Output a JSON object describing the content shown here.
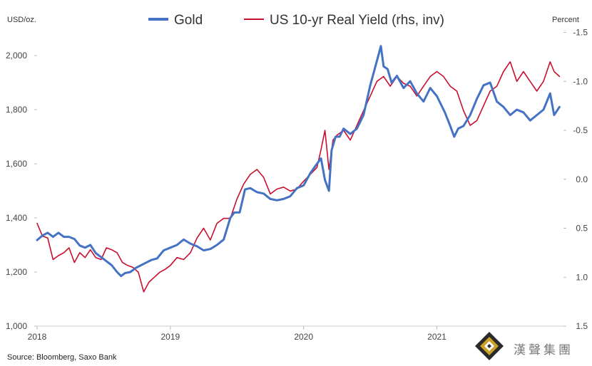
{
  "chart_data": {
    "type": "line",
    "title": "",
    "xlabel": "",
    "ylabel_left": "USD/oz.",
    "ylabel_right": "Percent",
    "x_ticks": [
      "2018",
      "2019",
      "2020",
      "2021"
    ],
    "x_tick_values": [
      2018.0,
      2019.0,
      2020.0,
      2021.0
    ],
    "xlim": [
      2018.0,
      2021.95
    ],
    "y_left_ticks": [
      "1,000",
      "1,200",
      "1,400",
      "1,600",
      "1,800",
      "2,000"
    ],
    "y_left_tick_values": [
      1000,
      1200,
      1400,
      1600,
      1800,
      2000
    ],
    "y_left_lim": [
      1000,
      2100
    ],
    "y_right_ticks": [
      "-1.5",
      "-1.0",
      "-0.5",
      "0.0",
      "0.5",
      "1.0",
      "1.5"
    ],
    "y_right_tick_values": [
      -1.5,
      -1.0,
      -0.5,
      0.0,
      0.5,
      1.0,
      1.5
    ],
    "y_right_lim": [
      -1.54,
      1.5
    ],
    "y_right_inverted": true,
    "legend_position": "top",
    "series": [
      {
        "name": "Gold",
        "axis": "left",
        "color": "#4472C4",
        "x": [
          2018.0,
          2018.04,
          2018.08,
          2018.12,
          2018.16,
          2018.2,
          2018.24,
          2018.28,
          2018.32,
          2018.36,
          2018.4,
          2018.44,
          2018.48,
          2018.52,
          2018.56,
          2018.6,
          2018.63,
          2018.66,
          2018.7,
          2018.74,
          2018.78,
          2018.82,
          2018.86,
          2018.9,
          2018.95,
          2019.0,
          2019.05,
          2019.1,
          2019.15,
          2019.2,
          2019.25,
          2019.3,
          2019.35,
          2019.4,
          2019.45,
          2019.48,
          2019.52,
          2019.56,
          2019.6,
          2019.65,
          2019.7,
          2019.75,
          2019.8,
          2019.85,
          2019.9,
          2019.95,
          2020.0,
          2020.05,
          2020.1,
          2020.13,
          2020.16,
          2020.19,
          2020.21,
          2020.24,
          2020.27,
          2020.3,
          2020.35,
          2020.4,
          2020.45,
          2020.5,
          2020.55,
          2020.58,
          2020.6,
          2020.63,
          2020.66,
          2020.7,
          2020.75,
          2020.8,
          2020.85,
          2020.9,
          2020.95,
          2021.0,
          2021.03,
          2021.06,
          2021.1,
          2021.13,
          2021.16,
          2021.2,
          2021.25,
          2021.3,
          2021.35,
          2021.4,
          2021.45,
          2021.5,
          2021.55,
          2021.6,
          2021.65,
          2021.7,
          2021.75,
          2021.8,
          2021.85,
          2021.88,
          2021.92
        ],
        "values": [
          1318,
          1335,
          1345,
          1330,
          1345,
          1330,
          1330,
          1322,
          1298,
          1290,
          1300,
          1270,
          1255,
          1240,
          1225,
          1200,
          1185,
          1196,
          1200,
          1215,
          1225,
          1235,
          1245,
          1250,
          1280,
          1290,
          1300,
          1320,
          1305,
          1295,
          1280,
          1285,
          1300,
          1320,
          1400,
          1420,
          1420,
          1505,
          1510,
          1495,
          1490,
          1470,
          1465,
          1470,
          1480,
          1510,
          1520,
          1565,
          1600,
          1620,
          1540,
          1500,
          1650,
          1700,
          1700,
          1730,
          1710,
          1730,
          1780,
          1890,
          1980,
          2035,
          1960,
          1950,
          1900,
          1925,
          1880,
          1905,
          1860,
          1830,
          1880,
          1850,
          1820,
          1790,
          1740,
          1700,
          1730,
          1740,
          1780,
          1840,
          1890,
          1900,
          1830,
          1810,
          1780,
          1800,
          1790,
          1760,
          1780,
          1800,
          1860,
          1780,
          1810
        ]
      },
      {
        "name": "US 10-yr Real Yield (rhs, inv)",
        "axis": "right",
        "color": "#C8102E",
        "x": [
          2018.0,
          2018.04,
          2018.08,
          2018.12,
          2018.16,
          2018.2,
          2018.24,
          2018.28,
          2018.32,
          2018.36,
          2018.4,
          2018.44,
          2018.48,
          2018.52,
          2018.56,
          2018.6,
          2018.64,
          2018.68,
          2018.72,
          2018.76,
          2018.8,
          2018.84,
          2018.88,
          2018.92,
          2018.96,
          2019.0,
          2019.05,
          2019.1,
          2019.15,
          2019.2,
          2019.25,
          2019.3,
          2019.35,
          2019.4,
          2019.45,
          2019.5,
          2019.55,
          2019.6,
          2019.65,
          2019.7,
          2019.75,
          2019.8,
          2019.85,
          2019.9,
          2019.95,
          2020.0,
          2020.05,
          2020.1,
          2020.13,
          2020.16,
          2020.19,
          2020.22,
          2020.25,
          2020.3,
          2020.35,
          2020.4,
          2020.45,
          2020.5,
          2020.55,
          2020.6,
          2020.65,
          2020.7,
          2020.75,
          2020.8,
          2020.85,
          2020.9,
          2020.95,
          2021.0,
          2021.05,
          2021.1,
          2021.15,
          2021.2,
          2021.25,
          2021.3,
          2021.35,
          2021.4,
          2021.45,
          2021.5,
          2021.55,
          2021.6,
          2021.65,
          2021.7,
          2021.75,
          2021.8,
          2021.85,
          2021.88,
          2021.92
        ],
        "values": [
          0.45,
          0.58,
          0.6,
          0.82,
          0.78,
          0.75,
          0.7,
          0.85,
          0.75,
          0.8,
          0.72,
          0.8,
          0.82,
          0.7,
          0.72,
          0.75,
          0.85,
          0.88,
          0.9,
          0.95,
          1.15,
          1.05,
          1.0,
          0.95,
          0.92,
          0.88,
          0.8,
          0.82,
          0.75,
          0.6,
          0.5,
          0.62,
          0.45,
          0.4,
          0.4,
          0.2,
          0.05,
          -0.05,
          -0.1,
          -0.02,
          0.15,
          0.1,
          0.08,
          0.12,
          0.1,
          0.02,
          -0.05,
          -0.12,
          -0.3,
          -0.5,
          -0.1,
          -0.4,
          -0.45,
          -0.5,
          -0.4,
          -0.55,
          -0.7,
          -0.85,
          -1.0,
          -1.05,
          -0.95,
          -1.05,
          -0.98,
          -0.95,
          -0.85,
          -0.95,
          -1.05,
          -1.1,
          -1.05,
          -0.95,
          -0.9,
          -0.7,
          -0.55,
          -0.6,
          -0.75,
          -0.9,
          -0.95,
          -1.1,
          -1.2,
          -1.0,
          -1.1,
          -1.0,
          -0.9,
          -1.0,
          -1.2,
          -1.1,
          -1.05
        ]
      }
    ],
    "source": "Source: Bloomberg, Saxo Bank"
  },
  "watermark": {
    "text": "漢聲集團",
    "icon": "diamond-logo-icon",
    "colors": {
      "gold": "#C9A227",
      "dark": "#2b2b2b"
    }
  }
}
